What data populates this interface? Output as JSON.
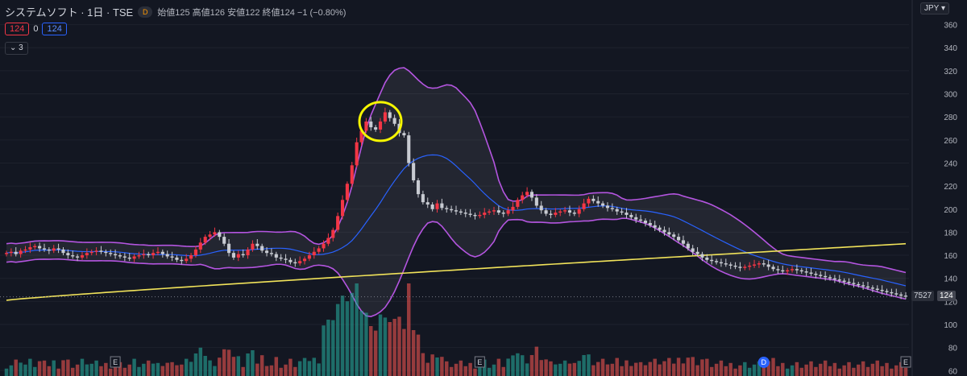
{
  "legend": {
    "symbol": "システムソフト · 1日 · TSE",
    "badge": "D",
    "open_label": "始値",
    "open": "125",
    "high_label": "高値",
    "high": "126",
    "low_label": "安値",
    "low": "122",
    "close_label": "終値",
    "close": "124",
    "change": "−1 (−0.80%)"
  },
  "toolbar": {
    "sell_price": "124",
    "spread": "0",
    "buy_price": "124",
    "indicators_count": "3"
  },
  "currency": "JPY",
  "last_price_tag": "124",
  "volume_tag": "7527",
  "colors": {
    "up": "#f23645",
    "down": "#c8cbd2",
    "vol_up": "#26a69a",
    "vol_down": "#ef5350",
    "bb": "#b455e0",
    "ma_short": "#2962ff",
    "ma_long": "#f1e35a",
    "highlight": "#f5f500"
  },
  "chart_data": {
    "type": "candlestick",
    "y_axis_ticks": [
      60,
      80,
      100,
      120,
      140,
      160,
      180,
      200,
      220,
      240,
      260,
      280,
      300,
      320,
      340,
      360
    ],
    "ylim": [
      56,
      366
    ],
    "event_markers": [
      "E",
      "E",
      "D",
      "E"
    ],
    "closes": [
      162,
      163,
      161,
      164,
      165,
      167,
      168,
      166,
      165,
      164,
      166,
      165,
      162,
      160,
      159,
      158,
      160,
      162,
      163,
      164,
      163,
      162,
      161,
      160,
      159,
      158,
      157,
      159,
      160,
      161,
      160,
      162,
      163,
      161,
      159,
      158,
      156,
      155,
      157,
      160,
      165,
      171,
      176,
      178,
      180,
      176,
      170,
      162,
      158,
      161,
      160,
      165,
      170,
      168,
      164,
      162,
      161,
      158,
      157,
      156,
      154,
      153,
      155,
      157,
      160,
      163,
      166,
      170,
      175,
      182,
      194,
      208,
      222,
      238,
      258,
      268,
      276,
      271,
      269,
      276,
      284,
      279,
      274,
      266,
      264,
      240,
      225,
      213,
      206,
      204,
      200,
      205,
      201,
      200,
      199,
      198,
      197,
      196,
      195,
      194,
      195,
      197,
      198,
      199,
      197,
      196,
      199,
      202,
      208,
      212,
      215,
      210,
      203,
      199,
      196,
      195,
      197,
      198,
      199,
      197,
      196,
      200,
      205,
      209,
      207,
      205,
      203,
      201,
      200,
      198,
      197,
      195,
      193,
      191,
      190,
      188,
      186,
      184,
      182,
      180,
      178,
      176,
      173,
      170,
      166,
      163,
      161,
      158,
      156,
      155,
      154,
      153,
      152,
      151,
      150,
      149,
      150,
      151,
      152,
      153,
      152,
      150,
      148,
      147,
      146,
      147,
      148,
      147,
      146,
      145,
      144,
      143,
      142,
      141,
      140,
      139,
      138,
      137,
      136,
      135,
      134,
      133,
      132,
      131,
      130,
      129,
      128,
      127,
      126,
      125,
      124
    ]
  }
}
